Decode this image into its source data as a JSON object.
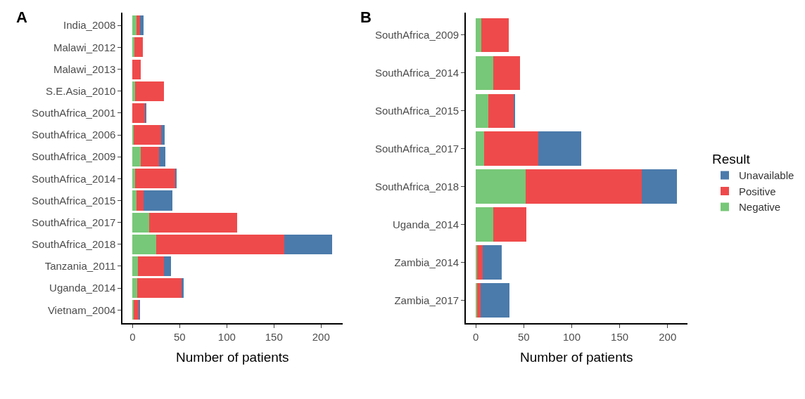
{
  "chart_data": [
    {
      "type": "bar",
      "title": "A",
      "orientation": "horizontal",
      "stacked": true,
      "grid": false,
      "xlabel": "Number of patients",
      "xlim": [
        -10.6,
        222.6
      ],
      "xticks": [
        0,
        50,
        100,
        150,
        200
      ],
      "categories": [
        "India_2008",
        "Malawi_2012",
        "Malawi_2013",
        "S.E.Asia_2010",
        "SouthAfrica_2001",
        "SouthAfrica_2006",
        "SouthAfrica_2009",
        "SouthAfrica_2014",
        "SouthAfrica_2015",
        "SouthAfrica_2017",
        "SouthAfrica_2018",
        "Tanzania_2011",
        "Uganda_2014",
        "Vietnam_2004"
      ],
      "series": [
        {
          "color": "#77c878",
          "values": [
            4,
            2,
            null,
            3,
            null,
            1,
            9,
            3,
            4,
            18,
            25,
            6,
            5,
            1
          ]
        },
        {
          "color": "#ef4a4b",
          "values": [
            4,
            9,
            9,
            30,
            14,
            29,
            19,
            43,
            8,
            93,
            136,
            27,
            47,
            6
          ]
        },
        {
          "color": "#4b7bab",
          "values": [
            4,
            null,
            null,
            null,
            1,
            4,
            7,
            1,
            30,
            null,
            51,
            8,
            2,
            1
          ]
        }
      ]
    },
    {
      "type": "bar",
      "title": "B",
      "orientation": "horizontal",
      "stacked": true,
      "grid": false,
      "legend": "right",
      "legend_title": "Result",
      "xlabel": "Number of patients",
      "xlim": [
        -10.5,
        220.5
      ],
      "xticks": [
        0,
        50,
        100,
        150,
        200
      ],
      "categories": [
        "SouthAfrica_2009",
        "SouthAfrica_2014",
        "SouthAfrica_2015",
        "SouthAfrica_2017",
        "SouthAfrica_2018",
        "Uganda_2014",
        "Zambia_2014",
        "Zambia_2017"
      ],
      "series": [
        {
          "name": "Negative",
          "color": "#77c878",
          "values": [
            6,
            18,
            13,
            9,
            52,
            18,
            1,
            1
          ]
        },
        {
          "name": "Positive",
          "color": "#ef4a4b",
          "values": [
            28,
            28,
            27,
            56,
            121,
            35,
            6,
            4
          ]
        },
        {
          "name": "Unavailable",
          "color": "#4b7bab",
          "values": [
            null,
            null,
            1,
            45,
            37,
            null,
            20,
            30
          ]
        }
      ]
    }
  ]
}
